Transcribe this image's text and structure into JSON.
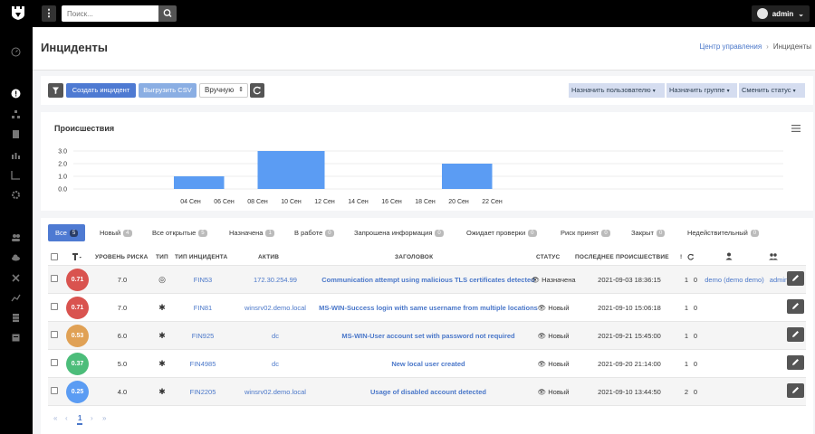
{
  "topbar": {
    "search_placeholder": "Поиск...",
    "user_name": "admin"
  },
  "header": {
    "title": "Инциденты",
    "breadcrumbs": [
      "Центр управления",
      "Инциденты"
    ]
  },
  "toolbar": {
    "create_label": "Создать инцидент",
    "csv_label": "Выгрузить CSV",
    "mode_value": "Вручную",
    "assign_user_label": "Назначить пользователю",
    "assign_group_label": "Назначить группе",
    "change_status_label": "Сменить статус"
  },
  "chart_panel": {
    "title": "Происшествия"
  },
  "chart_data": {
    "type": "bar",
    "title": "Происшествия",
    "xlabel": "",
    "ylabel": "",
    "ylim": [
      0,
      3.0
    ],
    "yticks": [
      "3.0",
      "2.0",
      "1.0",
      "0.0"
    ],
    "xticks": [
      "04 Сен",
      "06 Сен",
      "08 Сен",
      "10 Сен",
      "12 Сен",
      "14 Сен",
      "16 Сен",
      "18 Сен",
      "20 Сен",
      "22 Сен"
    ],
    "bars": [
      {
        "from": "03 Сен",
        "to": "06 Сен",
        "value": 1
      },
      {
        "from": "08 Сен",
        "to": "12 Сен",
        "value": 3
      },
      {
        "from": "19 Сен",
        "to": "22 Сен",
        "value": 2
      }
    ],
    "color": "#5b9cf3",
    "grid": true,
    "legend": "none"
  },
  "tabs": [
    {
      "label": "Все",
      "count": "5"
    },
    {
      "label": "Новый",
      "count": "4"
    },
    {
      "label": "Все открытые",
      "count": "5"
    },
    {
      "label": "Назначена",
      "count": "1"
    },
    {
      "label": "В работе",
      "count": "0"
    },
    {
      "label": "Запрошена информация",
      "count": "0"
    },
    {
      "label": "Ожидает проверки",
      "count": "0"
    },
    {
      "label": "Риск принят",
      "count": "0"
    },
    {
      "label": "Закрыт",
      "count": "0"
    },
    {
      "label": "Недействительный",
      "count": "0"
    }
  ],
  "table": {
    "headers": {
      "risk_level": "УРОВЕНЬ РИСКА",
      "type": "ТИП",
      "incident_type": "ТИП ИНЦИДЕНТА",
      "asset": "АКТИВ",
      "title": "ЗАГОЛОВОК",
      "status": "СТАТУС",
      "last_event": "ПОСЛЕДНЕЕ ПРОИСШЕСТВИЕ",
      "excl": "!"
    },
    "rows": [
      {
        "risk": "0.71",
        "risk_color": "#d9534f",
        "level": "7.0",
        "type_icon": "target-icon",
        "type_glyph": "◎",
        "incident_type": "FIN53",
        "asset": "172.30.254.99",
        "title": "Communication attempt using malicious TLS certificates detected",
        "status": "Назначена",
        "last_event": "2021-09-03 18:36:15",
        "c1": "1",
        "c2": "0",
        "assignee": "demo (demo demo)",
        "group": "admin"
      },
      {
        "risk": "0.71",
        "risk_color": "#d9534f",
        "level": "7.0",
        "type_icon": "asterisk-icon",
        "type_glyph": "✱",
        "incident_type": "FIN81",
        "asset": "winsrv02.demo.local",
        "title": "MS-WIN-Success login with same username from multiple locations",
        "status": "Новый",
        "last_event": "2021-09-10 15:06:18",
        "c1": "1",
        "c2": "0",
        "assignee": "",
        "group": ""
      },
      {
        "risk": "0.53",
        "risk_color": "#e0a155",
        "level": "6.0",
        "type_icon": "asterisk-icon",
        "type_glyph": "✱",
        "incident_type": "FIN925",
        "asset": "dc",
        "title": "MS-WIN-User account set with password not required",
        "status": "Новый",
        "last_event": "2021-09-21 15:45:00",
        "c1": "1",
        "c2": "0",
        "assignee": "",
        "group": ""
      },
      {
        "risk": "0.37",
        "risk_color": "#4cbd7a",
        "level": "5.0",
        "type_icon": "asterisk-icon",
        "type_glyph": "✱",
        "incident_type": "FIN4985",
        "asset": "dc",
        "title": "New local user created",
        "status": "Новый",
        "last_event": "2021-09-20 21:14:00",
        "c1": "1",
        "c2": "0",
        "assignee": "",
        "group": ""
      },
      {
        "risk": "0.25",
        "risk_color": "#5b9cf3",
        "level": "4.0",
        "type_icon": "asterisk-icon",
        "type_glyph": "✱",
        "incident_type": "FIN2205",
        "asset": "winsrv02.demo.local",
        "title": "Usage of disabled account detected",
        "status": "Новый",
        "last_event": "2021-09-10 13:44:50",
        "c1": "2",
        "c2": "0",
        "assignee": "",
        "group": ""
      }
    ]
  },
  "pagination": {
    "first": "«",
    "prev": "‹",
    "current": "1",
    "next": "›",
    "last": "»"
  }
}
